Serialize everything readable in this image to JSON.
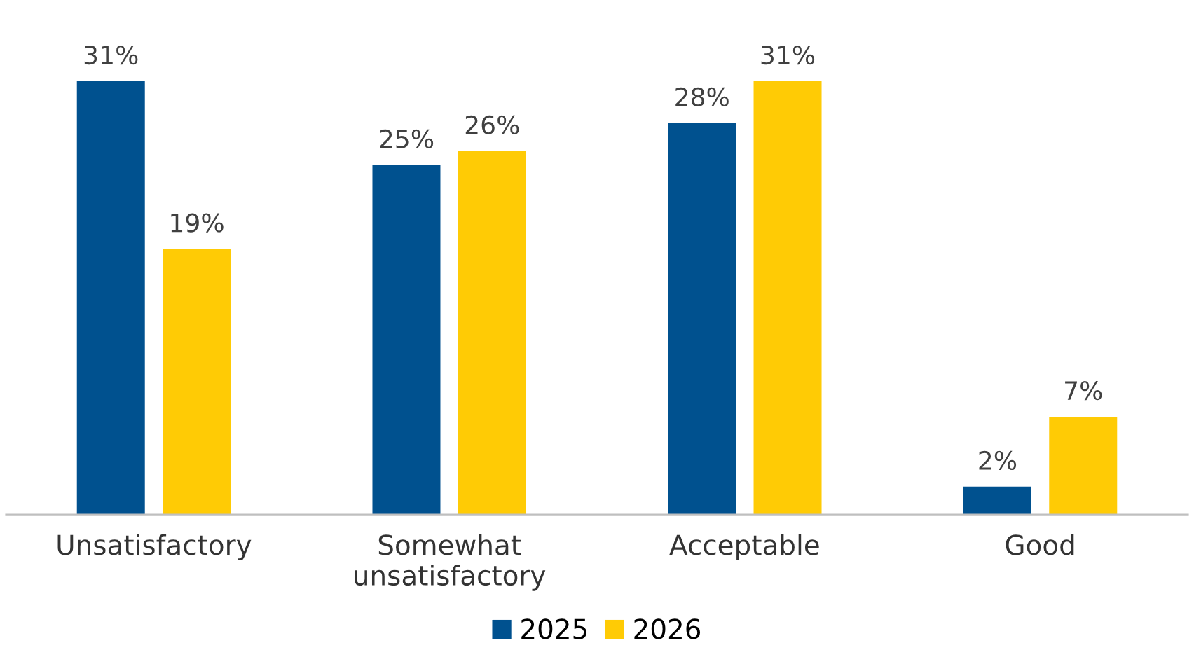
{
  "chart_data": {
    "type": "bar",
    "categories": [
      "Unsatisfactory",
      "Somewhat\nunsatisfactory",
      "Acceptable",
      "Good"
    ],
    "series": [
      {
        "name": "2025",
        "color": "#00518f",
        "values": [
          31,
          25,
          28,
          2
        ],
        "value_labels": [
          "31%",
          "25%",
          "28%",
          "2%"
        ]
      },
      {
        "name": "2026",
        "color": "#ffcb05",
        "values": [
          19,
          26,
          31,
          7
        ],
        "value_labels": [
          "19%",
          "26%",
          "31%",
          "7%"
        ]
      }
    ],
    "legend": "bottom",
    "grid": false
  }
}
